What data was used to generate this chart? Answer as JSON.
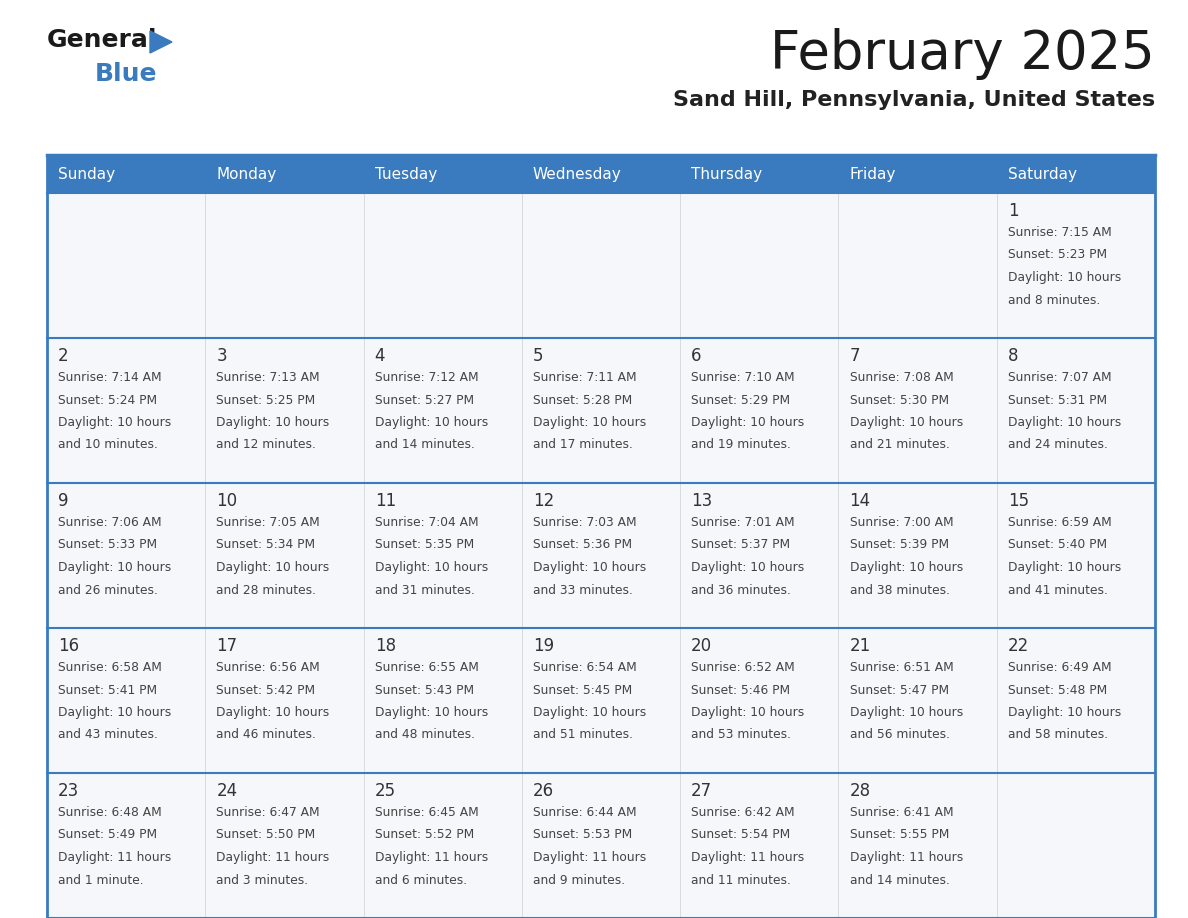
{
  "title": "February 2025",
  "subtitle": "Sand Hill, Pennsylvania, United States",
  "days_of_week": [
    "Sunday",
    "Monday",
    "Tuesday",
    "Wednesday",
    "Thursday",
    "Friday",
    "Saturday"
  ],
  "header_bg": "#3a7abf",
  "header_text": "#ffffff",
  "cell_bg": "#f5f7fa",
  "border_color": "#3a7abf",
  "day_num_color": "#333333",
  "cell_text_color": "#444444",
  "title_color": "#1a1a1a",
  "subtitle_color": "#222222",
  "calendar_data": [
    [
      null,
      null,
      null,
      null,
      null,
      null,
      {
        "day": 1,
        "sunrise": "7:15 AM",
        "sunset": "5:23 PM",
        "daylight": "10 hours",
        "daylight2": "and 8 minutes."
      }
    ],
    [
      {
        "day": 2,
        "sunrise": "7:14 AM",
        "sunset": "5:24 PM",
        "daylight": "10 hours",
        "daylight2": "and 10 minutes."
      },
      {
        "day": 3,
        "sunrise": "7:13 AM",
        "sunset": "5:25 PM",
        "daylight": "10 hours",
        "daylight2": "and 12 minutes."
      },
      {
        "day": 4,
        "sunrise": "7:12 AM",
        "sunset": "5:27 PM",
        "daylight": "10 hours",
        "daylight2": "and 14 minutes."
      },
      {
        "day": 5,
        "sunrise": "7:11 AM",
        "sunset": "5:28 PM",
        "daylight": "10 hours",
        "daylight2": "and 17 minutes."
      },
      {
        "day": 6,
        "sunrise": "7:10 AM",
        "sunset": "5:29 PM",
        "daylight": "10 hours",
        "daylight2": "and 19 minutes."
      },
      {
        "day": 7,
        "sunrise": "7:08 AM",
        "sunset": "5:30 PM",
        "daylight": "10 hours",
        "daylight2": "and 21 minutes."
      },
      {
        "day": 8,
        "sunrise": "7:07 AM",
        "sunset": "5:31 PM",
        "daylight": "10 hours",
        "daylight2": "and 24 minutes."
      }
    ],
    [
      {
        "day": 9,
        "sunrise": "7:06 AM",
        "sunset": "5:33 PM",
        "daylight": "10 hours",
        "daylight2": "and 26 minutes."
      },
      {
        "day": 10,
        "sunrise": "7:05 AM",
        "sunset": "5:34 PM",
        "daylight": "10 hours",
        "daylight2": "and 28 minutes."
      },
      {
        "day": 11,
        "sunrise": "7:04 AM",
        "sunset": "5:35 PM",
        "daylight": "10 hours",
        "daylight2": "and 31 minutes."
      },
      {
        "day": 12,
        "sunrise": "7:03 AM",
        "sunset": "5:36 PM",
        "daylight": "10 hours",
        "daylight2": "and 33 minutes."
      },
      {
        "day": 13,
        "sunrise": "7:01 AM",
        "sunset": "5:37 PM",
        "daylight": "10 hours",
        "daylight2": "and 36 minutes."
      },
      {
        "day": 14,
        "sunrise": "7:00 AM",
        "sunset": "5:39 PM",
        "daylight": "10 hours",
        "daylight2": "and 38 minutes."
      },
      {
        "day": 15,
        "sunrise": "6:59 AM",
        "sunset": "5:40 PM",
        "daylight": "10 hours",
        "daylight2": "and 41 minutes."
      }
    ],
    [
      {
        "day": 16,
        "sunrise": "6:58 AM",
        "sunset": "5:41 PM",
        "daylight": "10 hours",
        "daylight2": "and 43 minutes."
      },
      {
        "day": 17,
        "sunrise": "6:56 AM",
        "sunset": "5:42 PM",
        "daylight": "10 hours",
        "daylight2": "and 46 minutes."
      },
      {
        "day": 18,
        "sunrise": "6:55 AM",
        "sunset": "5:43 PM",
        "daylight": "10 hours",
        "daylight2": "and 48 minutes."
      },
      {
        "day": 19,
        "sunrise": "6:54 AM",
        "sunset": "5:45 PM",
        "daylight": "10 hours",
        "daylight2": "and 51 minutes."
      },
      {
        "day": 20,
        "sunrise": "6:52 AM",
        "sunset": "5:46 PM",
        "daylight": "10 hours",
        "daylight2": "and 53 minutes."
      },
      {
        "day": 21,
        "sunrise": "6:51 AM",
        "sunset": "5:47 PM",
        "daylight": "10 hours",
        "daylight2": "and 56 minutes."
      },
      {
        "day": 22,
        "sunrise": "6:49 AM",
        "sunset": "5:48 PM",
        "daylight": "10 hours",
        "daylight2": "and 58 minutes."
      }
    ],
    [
      {
        "day": 23,
        "sunrise": "6:48 AM",
        "sunset": "5:49 PM",
        "daylight": "11 hours",
        "daylight2": "and 1 minute."
      },
      {
        "day": 24,
        "sunrise": "6:47 AM",
        "sunset": "5:50 PM",
        "daylight": "11 hours",
        "daylight2": "and 3 minutes."
      },
      {
        "day": 25,
        "sunrise": "6:45 AM",
        "sunset": "5:52 PM",
        "daylight": "11 hours",
        "daylight2": "and 6 minutes."
      },
      {
        "day": 26,
        "sunrise": "6:44 AM",
        "sunset": "5:53 PM",
        "daylight": "11 hours",
        "daylight2": "and 9 minutes."
      },
      {
        "day": 27,
        "sunrise": "6:42 AM",
        "sunset": "5:54 PM",
        "daylight": "11 hours",
        "daylight2": "and 11 minutes."
      },
      {
        "day": 28,
        "sunrise": "6:41 AM",
        "sunset": "5:55 PM",
        "daylight": "11 hours",
        "daylight2": "and 14 minutes."
      },
      null
    ]
  ]
}
